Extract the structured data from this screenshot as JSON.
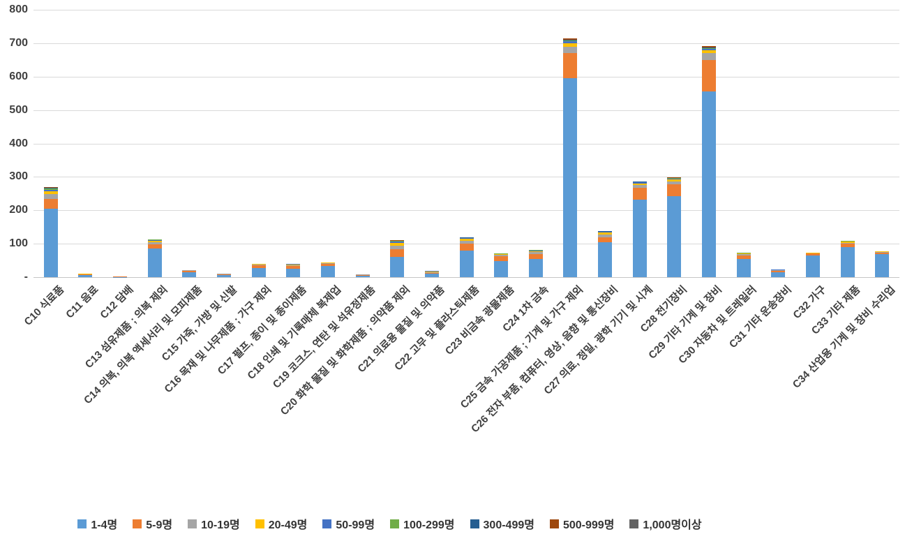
{
  "chart_data": {
    "type": "bar",
    "stacked": true,
    "grid": true,
    "legend_position": "bottom",
    "y_axis": {
      "min": 0,
      "max": 800,
      "step": 100,
      "tick_labels": [
        "-",
        "100",
        "200",
        "300",
        "400",
        "500",
        "600",
        "700",
        "800"
      ]
    },
    "categories": [
      "C10 식료품",
      "C11 음료",
      "C12 담배",
      "C13 섬유제품 ; 의복 제외",
      "C14 의복, 의복 액세서리 및 모피제품",
      "C15 가죽, 가방 및 신발",
      "C16 목재 및 나무제품 ; 가구 제외",
      "C17 펄프, 종이 및 종이제품",
      "C18 인쇄 및 기록매체 복제업",
      "C19 코크스, 연탄 및 석유정제품",
      "C20 화학 물질 및 화학제품 ; 의약품 제외",
      "C21 의료용 물질 및 의약품",
      "C22 고무 및 플라스틱제품",
      "C23 비금속 광물제품",
      "C24 1차 금속",
      "C25 금속 가공제품 ; 기계 및 가구 제외",
      "C26 전자 부품, 컴퓨터, 영상, 음향 및 통신장비",
      "C27 의료, 정밀, 광학 기기 및 시계",
      "C28 전기장비",
      "C29 기타 기계 및 장비",
      "C30 자동차 및 트레일러",
      "C31 기타 운송장비",
      "C32 가구",
      "C33 기타 제품",
      "C34 산업용 기계 및 장비 수리업"
    ],
    "series": [
      {
        "name": "1-4명",
        "color": "#5B9BD5",
        "values": [
          205,
          6,
          1,
          85,
          15,
          7,
          28,
          25,
          34,
          5,
          60,
          10,
          80,
          48,
          55,
          595,
          105,
          232,
          243,
          555,
          55,
          15,
          65,
          90,
          70
        ]
      },
      {
        "name": "5-9명",
        "color": "#ED7D31",
        "values": [
          30,
          2,
          1,
          14,
          4,
          2,
          7,
          8,
          6,
          2,
          24,
          3,
          20,
          14,
          15,
          75,
          15,
          35,
          35,
          95,
          10,
          4,
          6,
          10,
          4
        ]
      },
      {
        "name": "10-19명",
        "color": "#A5A5A5",
        "values": [
          14,
          1,
          0,
          6,
          2,
          1,
          2,
          3,
          2,
          1,
          10,
          2,
          8,
          4,
          5,
          20,
          8,
          8,
          8,
          20,
          4,
          2,
          1,
          3,
          2
        ]
      },
      {
        "name": "20-49명",
        "color": "#FFC000",
        "values": [
          8,
          1,
          0,
          4,
          1,
          0,
          2,
          2,
          1,
          0,
          8,
          2,
          6,
          3,
          3,
          10,
          5,
          6,
          6,
          8,
          2,
          1,
          1,
          3,
          1
        ]
      },
      {
        "name": "50-99명",
        "color": "#4472C4",
        "values": [
          5,
          0,
          0,
          2,
          0,
          0,
          1,
          1,
          0,
          0,
          4,
          1,
          3,
          1,
          2,
          6,
          2,
          3,
          3,
          5,
          1,
          1,
          1,
          1,
          1
        ]
      },
      {
        "name": "100-299명",
        "color": "#70AD47",
        "values": [
          3,
          0,
          0,
          1,
          0,
          0,
          0,
          1,
          0,
          0,
          2,
          0,
          1,
          1,
          1,
          3,
          1,
          1,
          1,
          3,
          1,
          0,
          0,
          1,
          0
        ]
      },
      {
        "name": "300-499명",
        "color": "#255E91",
        "values": [
          2,
          0,
          0,
          1,
          0,
          0,
          0,
          0,
          0,
          0,
          1,
          0,
          1,
          1,
          1,
          2,
          1,
          1,
          1,
          2,
          1,
          0,
          0,
          0,
          0
        ]
      },
      {
        "name": "500-999명",
        "color": "#9E480E",
        "values": [
          2,
          0,
          1,
          0,
          0,
          0,
          0,
          0,
          0,
          0,
          1,
          0,
          1,
          0,
          0,
          3,
          1,
          1,
          1,
          3,
          0,
          0,
          0,
          0,
          0
        ]
      },
      {
        "name": "1,000명이상",
        "color": "#636363",
        "values": [
          1,
          0,
          0,
          0,
          0,
          0,
          0,
          0,
          0,
          0,
          0,
          0,
          0,
          0,
          0,
          1,
          0,
          0,
          0,
          1,
          0,
          0,
          0,
          0,
          0
        ]
      }
    ]
  }
}
